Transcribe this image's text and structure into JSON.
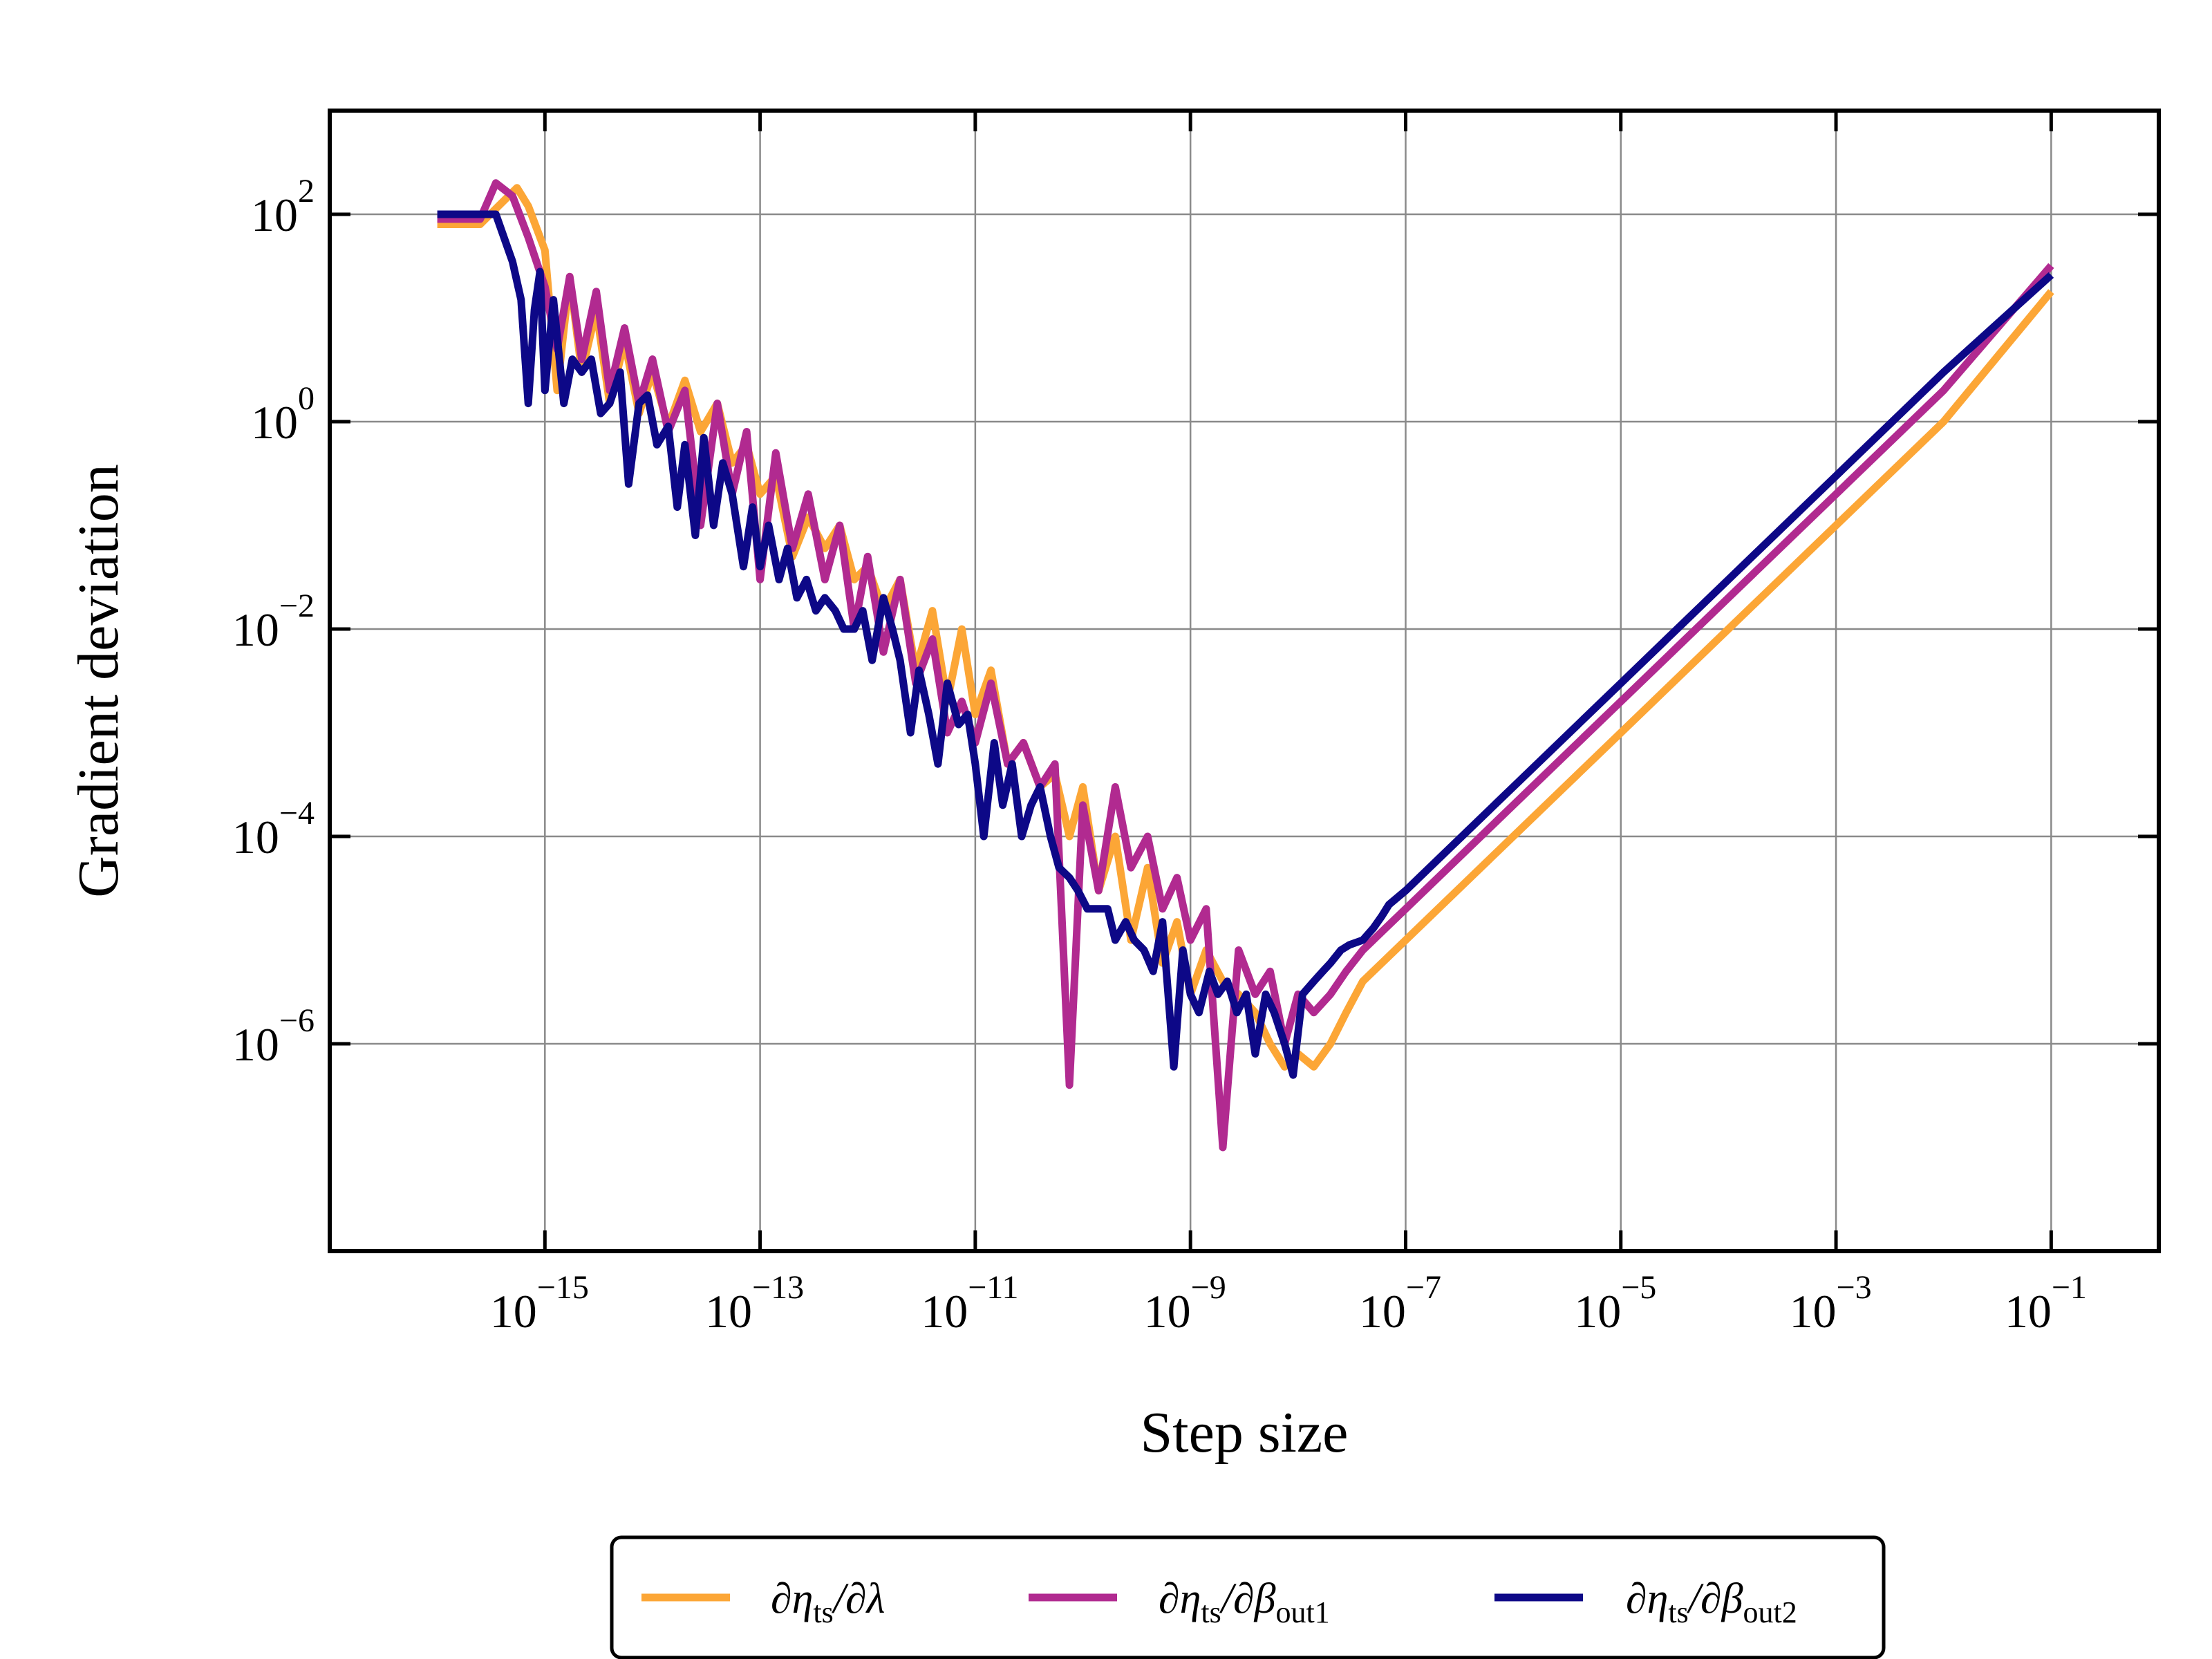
{
  "chart_data": {
    "type": "line",
    "title": "",
    "xlabel": "Step size",
    "ylabel": "Gradient deviation",
    "xscale": "log",
    "yscale": "log",
    "xlim": [
      1e-17,
      1
    ],
    "ylim": [
      1e-08,
      1000
    ],
    "grid": true,
    "legend": {
      "placement": "bottom-center, below axes",
      "entries": [
        {
          "series": 0,
          "parts": [
            [
              "∂η",
              ""
            ],
            [
              "ts",
              "sub"
            ],
            [
              "/∂λ",
              ""
            ]
          ]
        },
        {
          "series": 1,
          "parts": [
            [
              "∂η",
              ""
            ],
            [
              "ts",
              "sub"
            ],
            [
              "/∂β",
              ""
            ],
            [
              "out1",
              "sub"
            ]
          ]
        },
        {
          "series": 2,
          "parts": [
            [
              "∂η",
              ""
            ],
            [
              "ts",
              "sub"
            ],
            [
              "/∂β",
              ""
            ],
            [
              "out2",
              "sub"
            ]
          ]
        }
      ]
    },
    "x_ticks": [
      {
        "value": 1e-15,
        "base": "10",
        "exp": "−15"
      },
      {
        "value": 1e-13,
        "base": "10",
        "exp": "−13"
      },
      {
        "value": 1e-11,
        "base": "10",
        "exp": "−11"
      },
      {
        "value": 1e-09,
        "base": "10",
        "exp": "−9"
      },
      {
        "value": 1e-07,
        "base": "10",
        "exp": "−7"
      },
      {
        "value": 1e-05,
        "base": "10",
        "exp": "−5"
      },
      {
        "value": 0.001,
        "base": "10",
        "exp": "−3"
      },
      {
        "value": 0.1,
        "base": "10",
        "exp": "−1"
      }
    ],
    "y_ticks": [
      {
        "value": 100,
        "base": "10",
        "exp": "2"
      },
      {
        "value": 1,
        "base": "10",
        "exp": "0"
      },
      {
        "value": 0.01,
        "base": "10",
        "exp": "−2"
      },
      {
        "value": 0.0001,
        "base": "10",
        "exp": "−4"
      },
      {
        "value": 1e-06,
        "base": "10",
        "exp": "−6"
      }
    ],
    "series": [
      {
        "color": "#fca636",
        "x": [
          1e-16,
          1.8e-16,
          2.5e-16,
          4e-16,
          5.5e-16,
          7e-16,
          1e-15,
          1.3e-15,
          1.7e-15,
          2.2e-15,
          3e-15,
          4e-15,
          5.5e-15,
          7.5e-15,
          1e-14,
          1.4e-14,
          2e-14,
          2.8e-14,
          4e-14,
          5.5e-14,
          7.5e-14,
          1e-13,
          1.4e-13,
          2e-13,
          2.8e-13,
          4e-13,
          5.5e-13,
          7.5e-13,
          1e-12,
          1.4e-12,
          2e-12,
          2.8e-12,
          4e-12,
          5.5e-12,
          7.5e-12,
          1e-11,
          1.4e-11,
          2e-11,
          2.8e-11,
          4e-11,
          5.5e-11,
          7.5e-11,
          1e-10,
          1.4e-10,
          2e-10,
          2.8e-10,
          4e-10,
          5.5e-10,
          7.5e-10,
          1e-09,
          1.4e-09,
          2e-09,
          2.8e-09,
          4e-09,
          5.5e-09,
          7.5e-09,
          1e-08,
          1.4e-08,
          2e-08,
          2.8e-08,
          4e-08,
          6e-08,
          1e-07,
          1e-06,
          1e-05,
          0.0001,
          0.001,
          0.01,
          0.1
        ],
        "y": [
          80,
          80,
          80,
          130,
          180,
          120,
          45,
          2,
          25,
          3,
          12,
          1.5,
          6,
          1.2,
          3,
          0.9,
          2.5,
          0.8,
          1.5,
          0.4,
          0.6,
          0.2,
          0.3,
          0.05,
          0.12,
          0.06,
          0.1,
          0.03,
          0.04,
          0.015,
          0.03,
          0.004,
          0.015,
          0.002,
          0.01,
          0.0015,
          0.004,
          0.0005,
          0.0008,
          0.0003,
          0.0004,
          0.0001,
          0.0003,
          3e-05,
          0.0001,
          1e-05,
          5e-05,
          6e-06,
          1.5e-05,
          3e-06,
          8e-06,
          4e-06,
          3e-06,
          2e-06,
          1e-06,
          6e-07,
          8e-07,
          6e-07,
          1e-06,
          2e-06,
          4e-06,
          6e-06,
          1e-05,
          0.0001,
          0.001,
          0.01,
          0.1,
          1,
          18
        ]
      },
      {
        "color": "#b12a90",
        "x": [
          1e-16,
          2.5e-16,
          3.5e-16,
          5e-16,
          7e-16,
          1e-15,
          1.3e-15,
          1.7e-15,
          2.2e-15,
          3e-15,
          4e-15,
          5.5e-15,
          7.5e-15,
          1e-14,
          1.4e-14,
          2e-14,
          2.8e-14,
          4e-14,
          5.5e-14,
          7.5e-14,
          1e-13,
          1.4e-13,
          2e-13,
          2.8e-13,
          4e-13,
          5.5e-13,
          7.5e-13,
          1e-12,
          1.4e-12,
          2e-12,
          2.8e-12,
          4e-12,
          5.5e-12,
          7.5e-12,
          1e-11,
          1.4e-11,
          2e-11,
          2.8e-11,
          4e-11,
          5.5e-11,
          7.5e-11,
          1e-10,
          1.4e-10,
          2e-10,
          2.8e-10,
          4e-10,
          5.5e-10,
          7.5e-10,
          1e-09,
          1.4e-09,
          2e-09,
          2.8e-09,
          4e-09,
          5.5e-09,
          7.5e-09,
          1e-08,
          1.4e-08,
          2e-08,
          2.8e-08,
          4e-08,
          6e-08,
          1e-07,
          1e-06,
          1e-05,
          0.0001,
          0.001,
          0.01,
          0.1
        ],
        "y": [
          90,
          90,
          200,
          150,
          60,
          20,
          5,
          25,
          4,
          18,
          2,
          8,
          1.5,
          4,
          0.8,
          2,
          0.1,
          1.5,
          0.2,
          0.8,
          0.03,
          0.5,
          0.06,
          0.2,
          0.03,
          0.1,
          0.01,
          0.05,
          0.006,
          0.03,
          0.003,
          0.008,
          0.001,
          0.002,
          0.0008,
          0.003,
          0.0005,
          0.0008,
          0.0003,
          0.0005,
          4e-07,
          0.0002,
          3e-05,
          0.0003,
          5e-05,
          0.0001,
          2e-05,
          4e-05,
          1e-05,
          2e-05,
          1e-07,
          8e-06,
          3e-06,
          5e-06,
          1e-06,
          3e-06,
          2e-06,
          3e-06,
          5e-06,
          8e-06,
          1.2e-05,
          2e-05,
          0.0002,
          0.002,
          0.02,
          0.2,
          2,
          32
        ]
      },
      {
        "color": "#0d0887",
        "x": [
          1e-16,
          2.5e-16,
          3.5e-16,
          5e-16,
          6e-16,
          7e-16,
          8e-16,
          9e-16,
          1e-15,
          1.2e-15,
          1.5e-15,
          1.8e-15,
          2.2e-15,
          2.7e-15,
          3.3e-15,
          4e-15,
          5e-15,
          6e-15,
          7.5e-15,
          9e-15,
          1.1e-14,
          1.4e-14,
          1.7e-14,
          2e-14,
          2.5e-14,
          3e-14,
          3.7e-14,
          4.5e-14,
          5.5e-14,
          7e-14,
          8.5e-14,
          1e-13,
          1.2e-13,
          1.5e-13,
          1.8e-13,
          2.2e-13,
          2.7e-13,
          3.3e-13,
          4e-13,
          5e-13,
          6e-13,
          7.5e-13,
          9e-13,
          1.1e-12,
          1.4e-12,
          1.7e-12,
          2e-12,
          2.5e-12,
          3e-12,
          3.7e-12,
          4.5e-12,
          5.5e-12,
          7e-12,
          8.5e-12,
          1e-11,
          1.2e-11,
          1.5e-11,
          1.8e-11,
          2.2e-11,
          2.7e-11,
          3.3e-11,
          4e-11,
          5e-11,
          6e-11,
          7.5e-11,
          9e-11,
          1.1e-10,
          1.4e-10,
          1.7e-10,
          2e-10,
          2.5e-10,
          3e-10,
          3.7e-10,
          4.5e-10,
          5.5e-10,
          7e-10,
          8.5e-10,
          1e-09,
          1.2e-09,
          1.5e-09,
          1.8e-09,
          2.2e-09,
          2.7e-09,
          3.3e-09,
          4e-09,
          5e-09,
          6e-09,
          7.5e-09,
          9e-09,
          1.1e-08,
          1.4e-08,
          1.7e-08,
          2e-08,
          2.5e-08,
          3e-08,
          4e-08,
          5e-08,
          6e-08,
          7e-08,
          1e-07,
          1e-06,
          1e-05,
          0.0001,
          0.001,
          0.01,
          0.1
        ],
        "y": [
          100,
          100,
          100,
          35,
          15,
          1.5,
          12,
          28,
          2,
          15,
          1.5,
          4,
          3,
          4,
          1.2,
          1.5,
          3,
          0.25,
          1.5,
          1.8,
          0.6,
          0.9,
          0.15,
          0.6,
          0.08,
          0.7,
          0.1,
          0.4,
          0.2,
          0.04,
          0.15,
          0.04,
          0.1,
          0.03,
          0.06,
          0.02,
          0.03,
          0.015,
          0.02,
          0.015,
          0.01,
          0.01,
          0.015,
          0.005,
          0.02,
          0.01,
          0.005,
          0.001,
          0.004,
          0.0015,
          0.0005,
          0.003,
          0.0012,
          0.0015,
          0.0005,
          0.0001,
          0.0008,
          0.0002,
          0.0005,
          0.0001,
          0.0002,
          0.0003,
          0.0001,
          5e-05,
          4e-05,
          3e-05,
          2e-05,
          2e-05,
          2e-05,
          1e-05,
          1.5e-05,
          1e-05,
          8e-06,
          5e-06,
          1.5e-05,
          6e-07,
          8e-06,
          3e-06,
          2e-06,
          5e-06,
          3e-06,
          4e-06,
          2e-06,
          3e-06,
          8e-07,
          3e-06,
          2e-06,
          1e-06,
          5e-07,
          3e-06,
          4e-06,
          5e-06,
          6e-06,
          8e-06,
          9e-06,
          1e-05,
          1.3e-05,
          1.7e-05,
          2.2e-05,
          3e-05,
          0.0003,
          0.003,
          0.03,
          0.3,
          3,
          26
        ]
      }
    ]
  }
}
